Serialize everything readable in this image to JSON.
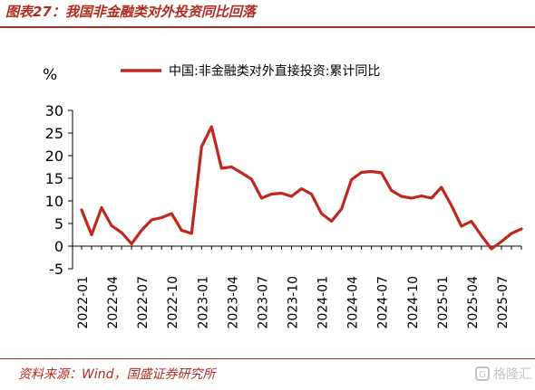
{
  "figure": {
    "title": "图表27：我国非金融类对外投资同比回落",
    "source": "资料来源：Wind，国盛证券研究所",
    "watermark": "格隆汇"
  },
  "colors": {
    "accent": "#b22a20",
    "series": "#c0281d"
  },
  "chart_data": {
    "type": "line",
    "unit_label": "%",
    "ylim": [
      -5,
      30
    ],
    "yticks": [
      -5,
      0,
      5,
      10,
      15,
      20,
      25,
      30
    ],
    "xtick_labels": [
      "2022-01",
      "2022-04",
      "2022-07",
      "2022-10",
      "2023-01",
      "2023-04",
      "2023-07",
      "2023-10",
      "2024-01",
      "2024-04",
      "2024-07",
      "2024-10",
      "2025-01",
      "2025-04",
      "2025-07"
    ],
    "legend_position": "top",
    "grid": false,
    "x": [
      "2022-01",
      "2022-02",
      "2022-03",
      "2022-04",
      "2022-05",
      "2022-06",
      "2022-07",
      "2022-08",
      "2022-09",
      "2022-10",
      "2022-11",
      "2022-12",
      "2023-01",
      "2023-02",
      "2023-03",
      "2023-04",
      "2023-05",
      "2023-06",
      "2023-07",
      "2023-08",
      "2023-09",
      "2023-10",
      "2023-11",
      "2023-12",
      "2024-01",
      "2024-02",
      "2024-03",
      "2024-04",
      "2024-05",
      "2024-06",
      "2024-07",
      "2024-08",
      "2024-09",
      "2024-10",
      "2024-11",
      "2024-12",
      "2025-01",
      "2025-02",
      "2025-03",
      "2025-04",
      "2025-05",
      "2025-06",
      "2025-07",
      "2025-08",
      "2025-09"
    ],
    "series": [
      {
        "name": "中国:非金融类对外直接投资:累计同比",
        "values": [
          8.0,
          2.5,
          8.5,
          4.5,
          3.0,
          0.5,
          3.5,
          5.8,
          6.3,
          7.2,
          3.5,
          2.8,
          22.0,
          26.4,
          17.2,
          17.5,
          16.2,
          14.8,
          10.6,
          11.5,
          11.7,
          11.0,
          12.7,
          11.5,
          7.2,
          5.5,
          8.2,
          14.7,
          16.3,
          16.5,
          16.2,
          12.3,
          11.0,
          10.6,
          11.1,
          10.6,
          13.0,
          9.0,
          4.4,
          5.5,
          2.3,
          -0.6,
          1.0,
          2.8,
          3.8
        ]
      }
    ]
  }
}
